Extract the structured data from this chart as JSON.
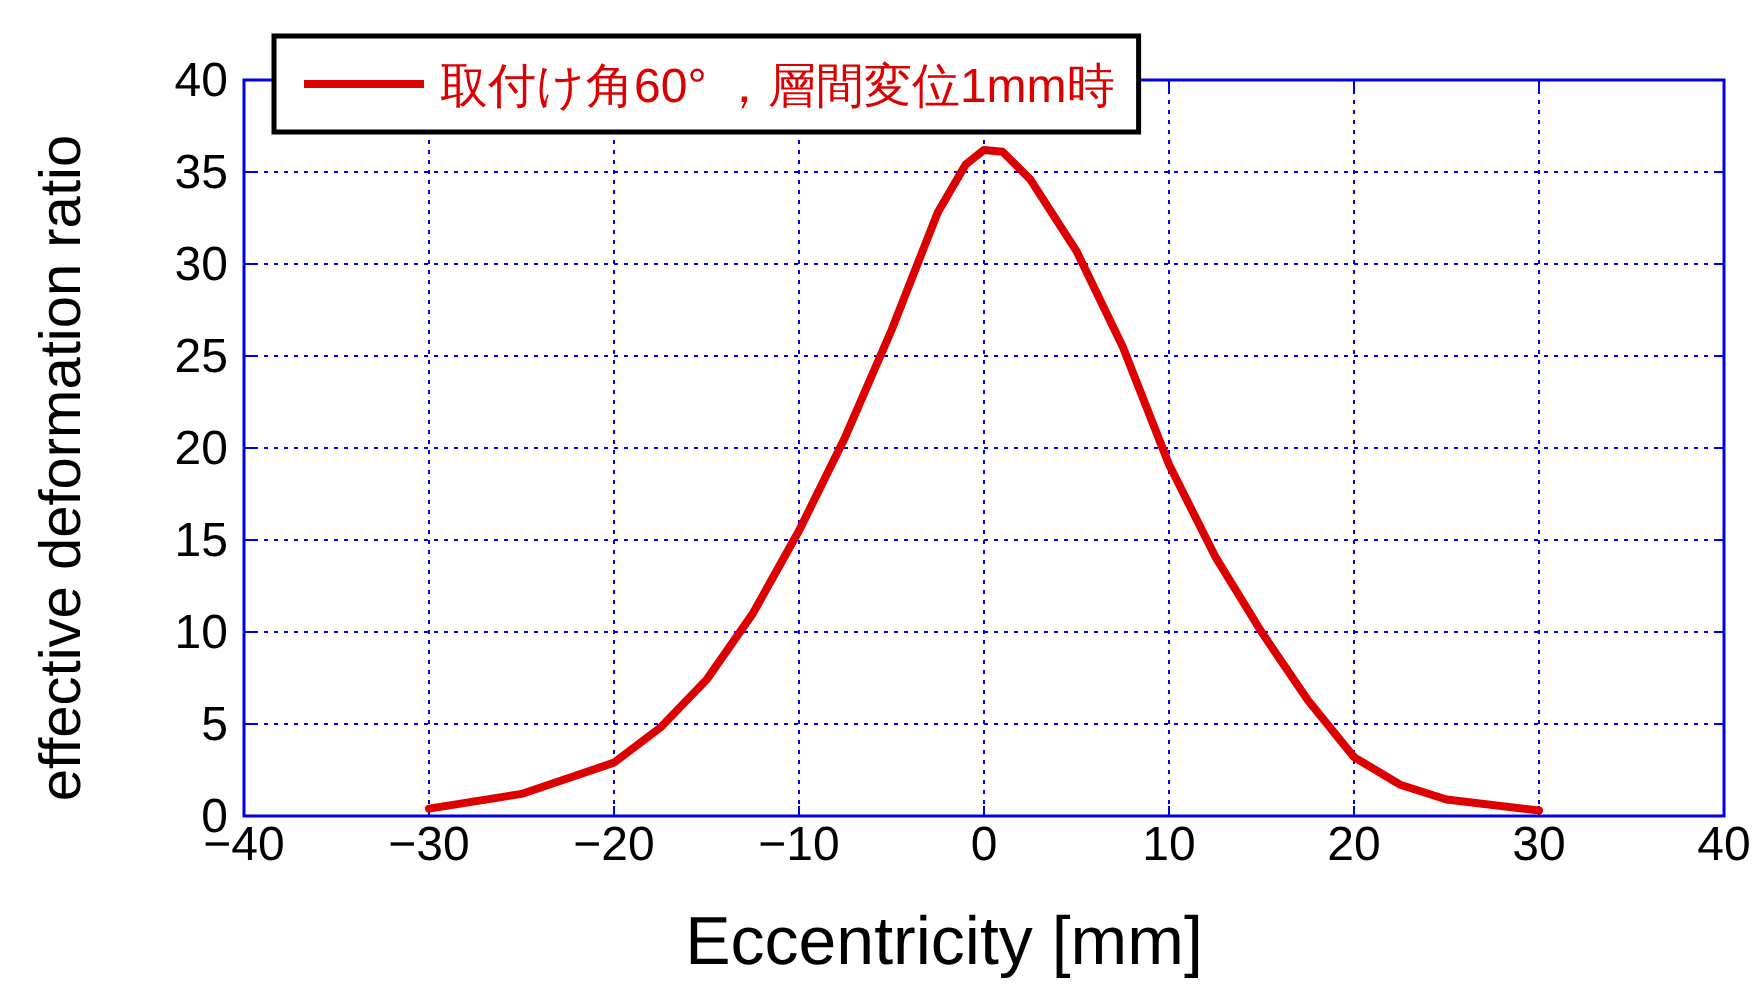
{
  "chart_data": {
    "type": "line",
    "xlabel": "Eccentricity [mm]",
    "ylabel": "effective deformation ratio",
    "xlim": [
      -40,
      40
    ],
    "ylim": [
      0,
      40
    ],
    "xticks": [
      -40,
      -30,
      -20,
      -10,
      0,
      10,
      20,
      30,
      40
    ],
    "yticks": [
      0,
      5,
      10,
      15,
      20,
      25,
      30,
      35,
      40
    ],
    "grid": true,
    "legend": "top left",
    "marker": "none",
    "line_style": "solid",
    "series": [
      {
        "name": "取付け角60° ，層間変位1mm時",
        "color": "#dd0000",
        "x": [
          -30,
          -25,
          -20,
          -17.5,
          -15,
          -12.5,
          -10,
          -7.5,
          -5,
          -2.5,
          -1,
          0,
          1,
          2.5,
          5,
          7.5,
          10,
          12.5,
          15,
          17.5,
          20,
          22.5,
          25,
          30
        ],
        "values": [
          0.4,
          1.2,
          2.9,
          4.8,
          7.4,
          11,
          15.5,
          20.6,
          26.4,
          32.8,
          35.4,
          36.2,
          36.1,
          34.6,
          30.7,
          25.5,
          19.1,
          14.1,
          10,
          6.3,
          3.2,
          1.7,
          0.9,
          0.3
        ]
      }
    ]
  }
}
